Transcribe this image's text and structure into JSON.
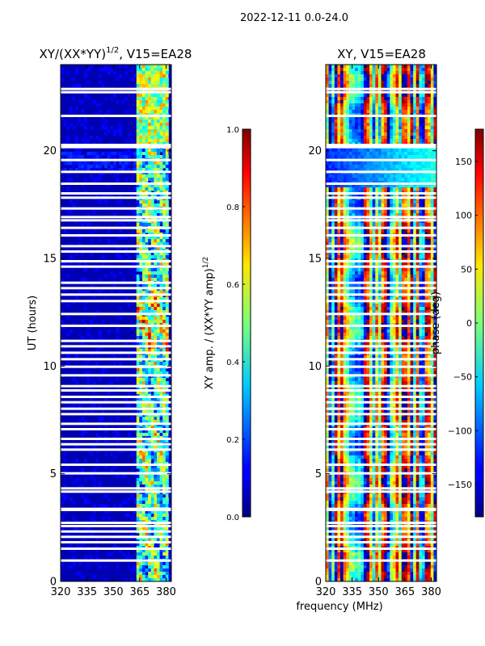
{
  "suptitle": "2022-12-11 0.0-24.0",
  "shared": {
    "xlabel": "frequency (MHz)",
    "ylabel": "UT (hours)",
    "x_ticks": [
      320,
      335,
      350,
      365,
      380
    ],
    "xlim": [
      320,
      383
    ],
    "y_ticks": [
      0,
      5,
      10,
      15,
      20
    ],
    "ylim": [
      0,
      24
    ]
  },
  "chart_data": [
    {
      "type": "heatmap",
      "title_main": "XY/(XX*YY)",
      "title_sup": "1/2",
      "title_rest": ", V15=EA28",
      "x_range": [
        320,
        383
      ],
      "y_range": [
        0,
        24
      ],
      "bright_band_mhz": [
        363,
        381
      ],
      "colorbar": {
        "label_main": "XY amp. / (XX*YY amp)",
        "label_sup": "1/2",
        "range": [
          0.0,
          1.0
        ],
        "ticks": [
          "0.0",
          "0.2",
          "0.4",
          "0.6",
          "0.8",
          "1.0"
        ]
      }
    },
    {
      "type": "heatmap",
      "title_main": "XY, V15=EA28",
      "x_range": [
        320,
        383
      ],
      "y_range": [
        0,
        24
      ],
      "colorbar": {
        "label_main": "phase (deg)",
        "range": [
          -180,
          180
        ],
        "ticks": [
          "−150",
          "−100",
          "−50",
          "0",
          "50",
          "100",
          "150"
        ]
      }
    }
  ],
  "flagged_hours": [
    0.95,
    1.5,
    1.8,
    2.05,
    2.3,
    2.55,
    2.7,
    3.3,
    3.35,
    4.15,
    4.3,
    5.0,
    5.4,
    6.1,
    6.35,
    6.6,
    7.05,
    7.3,
    7.75,
    8.0,
    8.3,
    8.55,
    8.85,
    9.05,
    9.55,
    9.95,
    10.3,
    10.6,
    10.9,
    11.15,
    11.85,
    12.4,
    13.0,
    13.3,
    13.6,
    13.85,
    14.6,
    14.85,
    15.3,
    15.55,
    16.05,
    16.4,
    16.75,
    16.9,
    17.3,
    17.8,
    18.0,
    18.45,
    19.0,
    19.55,
    20.15,
    20.25,
    21.6,
    22.7,
    22.85
  ],
  "colors": {
    "background": "#ffffff",
    "flag_gap": "#ffffff",
    "axis": "#000000"
  }
}
